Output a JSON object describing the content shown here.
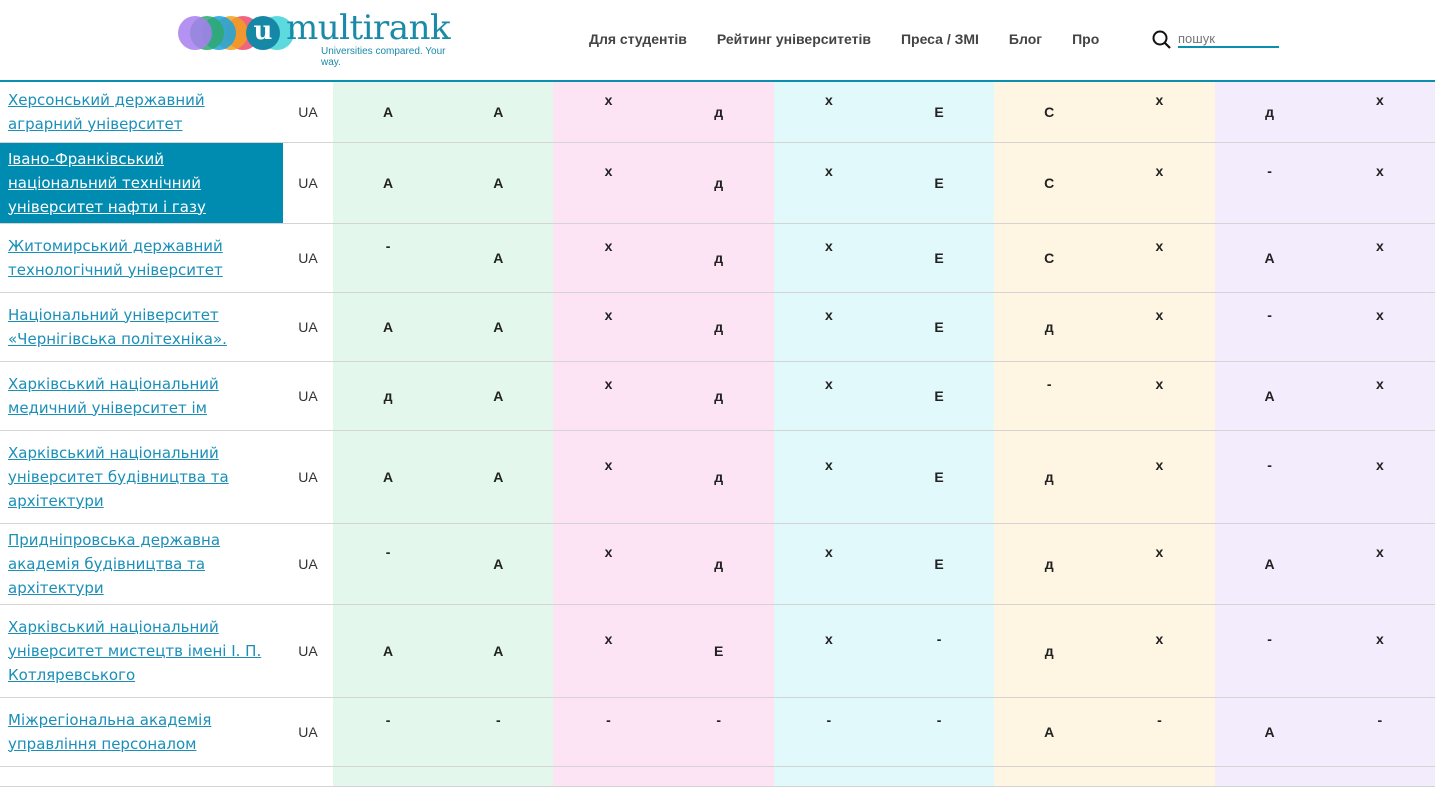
{
  "header": {
    "logo": {
      "word": "multirank",
      "letter": "u",
      "tagline": "Universities compared. Your way.",
      "circle_colors": [
        "#a77ff0",
        "#2ea86e",
        "#1aa3e0",
        "#f0a020",
        "#ec4a6a",
        "#40d4d8"
      ]
    },
    "nav": [
      "Для студентів",
      "Рейтинг університетів",
      "Преса / ЗМІ",
      "Блог",
      "Про"
    ],
    "search": {
      "icon": "search-icon",
      "placeholder": "пошук",
      "value": ""
    }
  },
  "colors": {
    "accent": "#0a8fae",
    "highlight": "#008bb0",
    "link": "#1a8fb8",
    "groups": [
      "#e3f7ec",
      "#fde4f5",
      "#e2f9fb",
      "#fef5e3",
      "#f3ecfd"
    ]
  },
  "rows": [
    {
      "name": "Херсонський державний аграрний університет",
      "country": "UA",
      "grades": [
        "A",
        "A",
        "x",
        "д",
        "x",
        "E",
        "C",
        "x",
        "д",
        "x"
      ]
    },
    {
      "name": "Івано-Франківський національний технічний університет нафти і газу",
      "country": "UA",
      "highlighted": true,
      "grades": [
        "A",
        "A",
        "x",
        "д",
        "x",
        "E",
        "C",
        "x",
        "-",
        "x"
      ]
    },
    {
      "name": "Житомирський державний технологічний університет",
      "country": "UA",
      "grades": [
        "-",
        "A",
        "x",
        "д",
        "x",
        "E",
        "C",
        "x",
        "A",
        "x"
      ]
    },
    {
      "name": "Національний університет «Чернігівська політехніка».",
      "country": "UA",
      "grades": [
        "A",
        "A",
        "x",
        "д",
        "x",
        "E",
        "д",
        "x",
        "-",
        "x"
      ]
    },
    {
      "name": "Харківський національний медичний університет ім",
      "country": "UA",
      "grades": [
        "д",
        "A",
        "x",
        "д",
        "x",
        "E",
        "-",
        "x",
        "A",
        "x"
      ]
    },
    {
      "name": "Харківський національний університет будівництва та архітектури",
      "country": "UA",
      "grades": [
        "A",
        "A",
        "x",
        "д",
        "x",
        "E",
        "д",
        "x",
        "-",
        "x"
      ]
    },
    {
      "name": "Придніпровська державна академія будівництва та архітектури",
      "country": "UA",
      "grades": [
        "-",
        "A",
        "x",
        "д",
        "x",
        "E",
        "д",
        "x",
        "A",
        "x"
      ]
    },
    {
      "name": "Харківський національний університет мистецтв імені І. П. Котляревського",
      "country": "UA",
      "grades": [
        "A",
        "A",
        "x",
        "E",
        "x",
        "-",
        "д",
        "x",
        "-",
        "x"
      ]
    },
    {
      "name": "Міжрегіональна академія управління персоналом",
      "country": "UA",
      "grades": [
        "-",
        "-",
        "-",
        "-",
        "-",
        "-",
        "A",
        "-",
        "A",
        "-"
      ]
    }
  ]
}
